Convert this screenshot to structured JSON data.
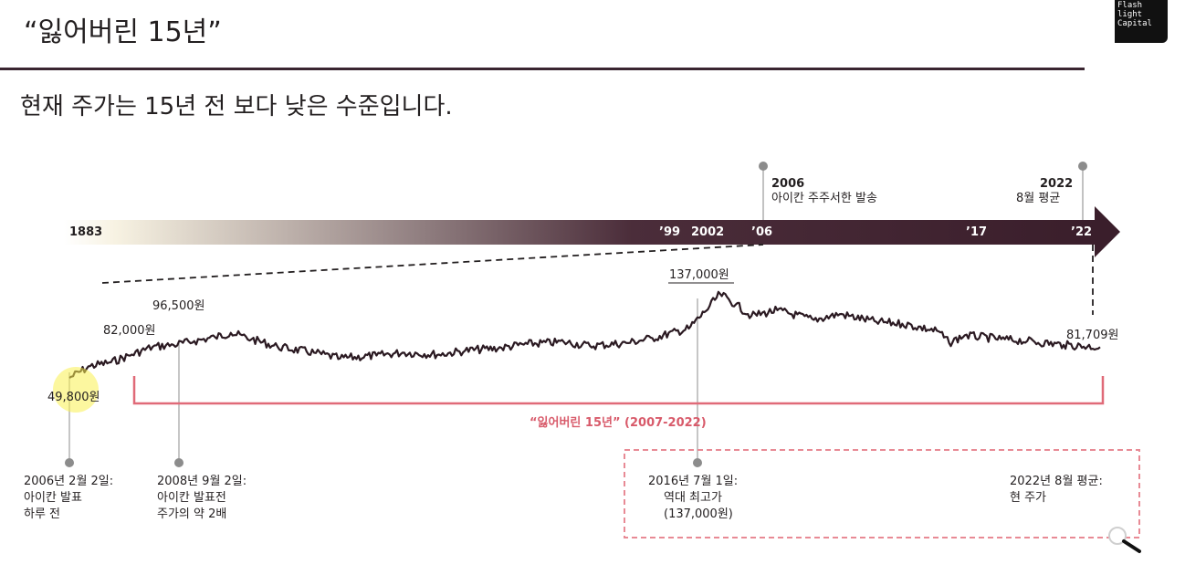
{
  "header": {
    "title": "“잃어버린 15년”",
    "subtitle": "현재 주가는 15년 전 보다 낮은 수준입니다.",
    "logo_text": "Flash\nlight\nCapital"
  },
  "colors": {
    "timeline_dark": "#3a1e2b",
    "price_line": "#2b1a22",
    "accent_pink": "#e06a78",
    "text": "#231f20"
  },
  "timeline": {
    "ticks": [
      {
        "id": "t1883",
        "label": "1883"
      },
      {
        "id": "t99",
        "label": "’99"
      },
      {
        "id": "t2002",
        "label": "2002"
      },
      {
        "id": "t06",
        "label": "’06"
      },
      {
        "id": "t17",
        "label": "’17"
      },
      {
        "id": "t22",
        "label": "’22"
      }
    ],
    "callouts": [
      {
        "id": "c2006",
        "year": "2006",
        "text": "아이칸 주주서한 발송"
      },
      {
        "id": "c2022",
        "year": "2022",
        "text": "8월 평균"
      }
    ]
  },
  "chart_data": {
    "type": "line",
    "title": "",
    "xlabel": "",
    "ylabel": "",
    "x_range": [
      "2006-02",
      "2022-08"
    ],
    "ylim": [
      40000,
      145000
    ],
    "series": [
      {
        "x": [
          "2006-02",
          "2006-06",
          "2006-10",
          "2007-02",
          "2007-06",
          "2007-10",
          "2008-02",
          "2008-06",
          "2008-09",
          "2009-01",
          "2009-06",
          "2010-01",
          "2010-06",
          "2011-01",
          "2011-06",
          "2012-01",
          "2012-06",
          "2013-01",
          "2013-06",
          "2014-01",
          "2014-06",
          "2015-01",
          "2015-06",
          "2016-01",
          "2016-04",
          "2016-07",
          "2016-10",
          "2017-01",
          "2017-06",
          "2018-01",
          "2018-06",
          "2019-01",
          "2019-06",
          "2020-01",
          "2020-03",
          "2020-06",
          "2021-01",
          "2021-06",
          "2022-01",
          "2022-08"
        ],
        "values": [
          49800,
          62000,
          66000,
          74000,
          82000,
          84000,
          88000,
          92000,
          96500,
          90000,
          82000,
          76000,
          70000,
          73000,
          76000,
          74000,
          78000,
          81000,
          85000,
          87000,
          83000,
          86000,
          91000,
          101000,
          118000,
          137000,
          126000,
          114000,
          120000,
          110000,
          116000,
          108000,
          106000,
          98000,
          86000,
          94000,
          90000,
          88000,
          84000,
          81709
        ]
      }
    ],
    "annotations": [
      {
        "id": "a1",
        "value_label": "49,800원",
        "caption": [
          "2006년 2월 2일:",
          "아이칸 발표",
          "하루 전"
        ]
      },
      {
        "id": "a2",
        "value_label": "96,500원",
        "caption": [
          "2008년 9월 2일:",
          "아이칸 발표전",
          "주가의 약 2배"
        ]
      },
      {
        "id": "a3",
        "value_label": "82,000원"
      },
      {
        "id": "a4",
        "value_label": "137,000원",
        "caption": [
          "2016년 7월 1일:",
          "역대 최고가",
          "(137,000원)"
        ]
      },
      {
        "id": "a5",
        "value_label": "81,709원",
        "caption": [
          "2022년 8월 평균:",
          "현 주가"
        ]
      }
    ],
    "period_label": "“잃어버린 15년” (2007-2022)"
  }
}
